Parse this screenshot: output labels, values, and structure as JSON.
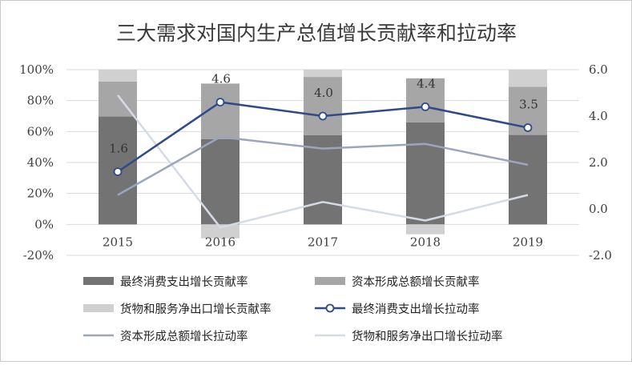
{
  "chart_data": {
    "type": "bar+line",
    "title": "三大需求对国内生产总值增长贡献率和拉动率",
    "categories": [
      "2015",
      "2016",
      "2017",
      "2018",
      "2019"
    ],
    "y_left": {
      "min": -20,
      "max": 100,
      "ticks": [
        "-20%",
        "0%",
        "20%",
        "40%",
        "60%",
        "80%",
        "100%"
      ]
    },
    "y_right": {
      "min": -2.0,
      "max": 6.0,
      "ticks": [
        "-2.0",
        "0.0",
        "2.0",
        "4.0",
        "6.0"
      ]
    },
    "bar_series": [
      {
        "name": "最终消费支出增长贡献率",
        "values": [
          69.7,
          55.0,
          57.6,
          65.9,
          57.8
        ],
        "color": "#737373"
      },
      {
        "name": "资本形成总额增长贡献率",
        "values": [
          22.6,
          36.0,
          37.7,
          28.5,
          31.2
        ],
        "color": "#a6a6a6"
      },
      {
        "name": "货物和服务净出口增长贡献率",
        "values": [
          7.7,
          -9.0,
          4.7,
          -6.4,
          11.0
        ],
        "color": "#d0d0d0"
      }
    ],
    "line_series": [
      {
        "name": "最终消费支出增长拉动率",
        "values": [
          1.6,
          4.6,
          4.0,
          4.4,
          3.5
        ],
        "color": "#2e4a8a",
        "markers": true,
        "labels": [
          "1.6",
          "4.6",
          "4.0",
          "4.4",
          "3.5"
        ]
      },
      {
        "name": "资本形成总额增长拉动率",
        "values": [
          0.6,
          3.1,
          2.6,
          2.8,
          1.9
        ],
        "color": "#9aa6bd",
        "markers": false
      },
      {
        "name": "货物和服务净出口增长拉动率",
        "values": [
          4.9,
          -0.8,
          0.3,
          -0.5,
          0.6
        ],
        "color": "#d5dbe6",
        "markers": false
      }
    ],
    "legend": [
      "最终消费支出增长贡献率",
      "资本形成总额增长贡献率",
      "货物和服务净出口增长贡献率",
      "最终消费支出增长拉动率",
      "资本形成总额增长拉动率",
      "货物和服务净出口增长拉动率"
    ],
    "grid": true,
    "legend_position": "bottom"
  }
}
